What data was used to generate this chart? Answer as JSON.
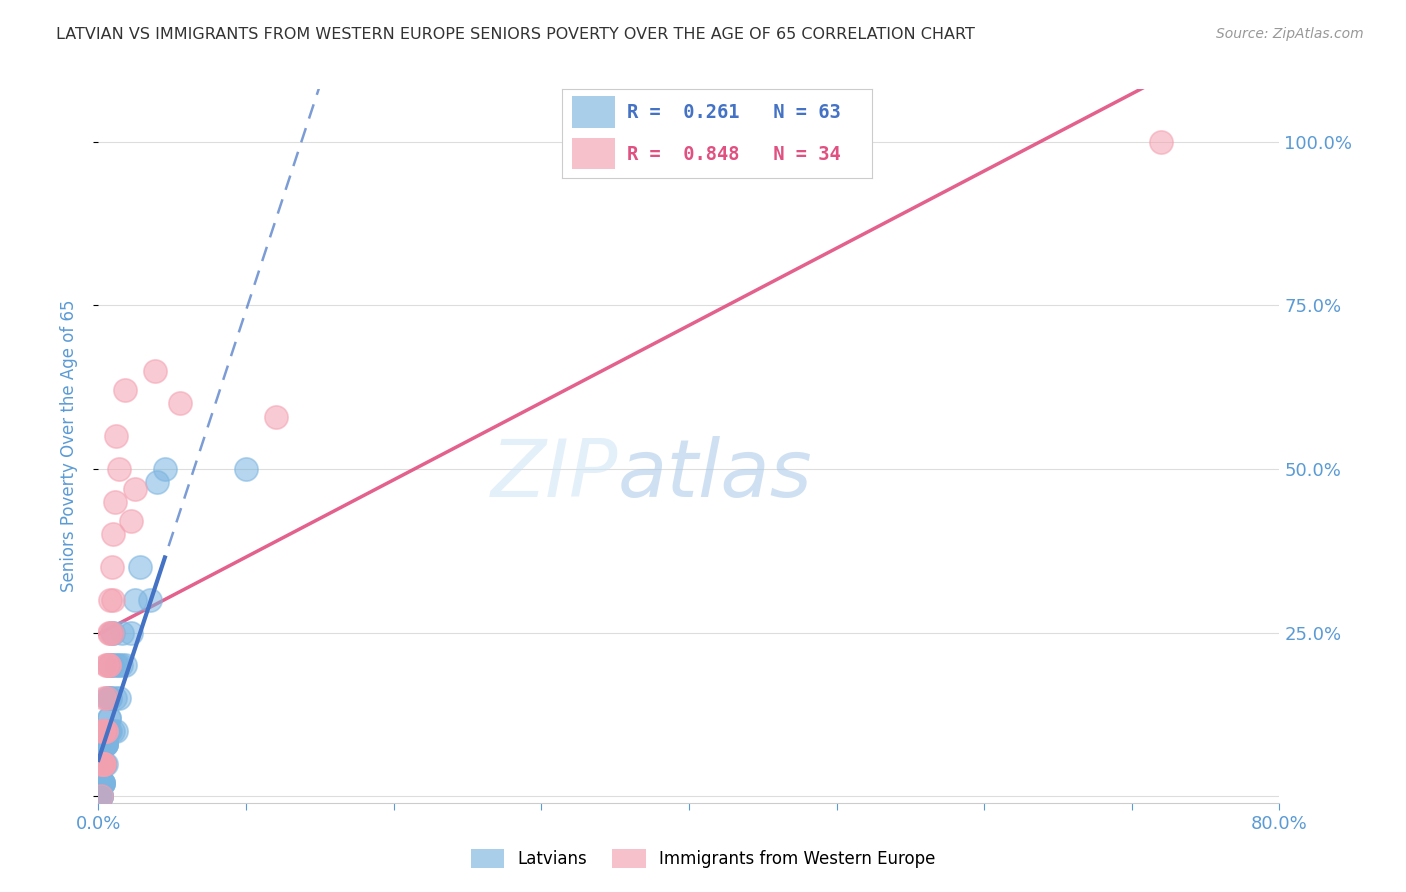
{
  "title": "LATVIAN VS IMMIGRANTS FROM WESTERN EUROPE SENIORS POVERTY OVER THE AGE OF 65 CORRELATION CHART",
  "source": "Source: ZipAtlas.com",
  "ylabel": "Seniors Poverty Over the Age of 65",
  "xlim": [
    0.0,
    0.8
  ],
  "ylim": [
    -0.01,
    1.08
  ],
  "x_ticks": [
    0.0,
    0.1,
    0.2,
    0.3,
    0.4,
    0.5,
    0.6,
    0.7,
    0.8
  ],
  "x_tick_labels": [
    "0.0%",
    "",
    "",
    "",
    "",
    "",
    "",
    "",
    "80.0%"
  ],
  "y_ticks": [
    0.0,
    0.25,
    0.5,
    0.75,
    1.0
  ],
  "right_y_tick_labels": [
    "",
    "25.0%",
    "50.0%",
    "75.0%",
    "100.0%"
  ],
  "latvian_R": 0.261,
  "latvian_N": 63,
  "immigrant_R": 0.848,
  "immigrant_N": 34,
  "blue_color": "#7ab4e0",
  "pink_color": "#f4a0b0",
  "blue_line_color": "#4472c4",
  "pink_line_color": "#e05080",
  "watermark_zip": "ZIP",
  "watermark_atlas": "atlas",
  "latvian_x": [
    0.002,
    0.003,
    0.001,
    0.002,
    0.003,
    0.004,
    0.005,
    0.001,
    0.002,
    0.003,
    0.001,
    0.002,
    0.003,
    0.004,
    0.005,
    0.006,
    0.007,
    0.008,
    0.001,
    0.002,
    0.003,
    0.004,
    0.002,
    0.003,
    0.004,
    0.005,
    0.006,
    0.007,
    0.008,
    0.002,
    0.003,
    0.004,
    0.005,
    0.006,
    0.008,
    0.004,
    0.005,
    0.006,
    0.005,
    0.006,
    0.007,
    0.008,
    0.009,
    0.007,
    0.009,
    0.008,
    0.01,
    0.01,
    0.012,
    0.011,
    0.013,
    0.012,
    0.014,
    0.015,
    0.016,
    0.018,
    0.022,
    0.025,
    0.028,
    0.035,
    0.04,
    0.045,
    0.1
  ],
  "latvian_y": [
    0.02,
    0.05,
    0.0,
    0.0,
    0.02,
    0.05,
    0.08,
    0.0,
    0.02,
    0.05,
    0.0,
    0.0,
    0.02,
    0.05,
    0.08,
    0.1,
    0.12,
    0.15,
    0.0,
    0.02,
    0.05,
    0.08,
    0.0,
    0.02,
    0.05,
    0.08,
    0.1,
    0.12,
    0.15,
    0.0,
    0.02,
    0.05,
    0.08,
    0.1,
    0.2,
    0.05,
    0.1,
    0.15,
    0.05,
    0.1,
    0.15,
    0.2,
    0.25,
    0.1,
    0.2,
    0.1,
    0.25,
    0.1,
    0.2,
    0.15,
    0.2,
    0.1,
    0.15,
    0.2,
    0.25,
    0.2,
    0.25,
    0.3,
    0.35,
    0.3,
    0.48,
    0.5,
    0.5
  ],
  "immigrant_x": [
    0.001,
    0.002,
    0.002,
    0.003,
    0.003,
    0.004,
    0.003,
    0.004,
    0.004,
    0.005,
    0.005,
    0.004,
    0.005,
    0.006,
    0.007,
    0.006,
    0.007,
    0.008,
    0.007,
    0.008,
    0.009,
    0.01,
    0.009,
    0.01,
    0.011,
    0.012,
    0.014,
    0.018,
    0.022,
    0.025,
    0.038,
    0.055,
    0.12,
    0.72
  ],
  "immigrant_y": [
    0.05,
    0.1,
    0.0,
    0.05,
    0.1,
    0.15,
    0.05,
    0.1,
    0.05,
    0.1,
    0.2,
    0.05,
    0.1,
    0.15,
    0.2,
    0.2,
    0.25,
    0.3,
    0.2,
    0.25,
    0.35,
    0.4,
    0.25,
    0.3,
    0.45,
    0.55,
    0.5,
    0.62,
    0.42,
    0.47,
    0.65,
    0.6,
    0.58,
    1.0
  ],
  "background_color": "#ffffff",
  "grid_color": "#dddddd",
  "title_color": "#333333",
  "axis_label_color": "#5b9bd5",
  "tick_color": "#5b9bd5"
}
